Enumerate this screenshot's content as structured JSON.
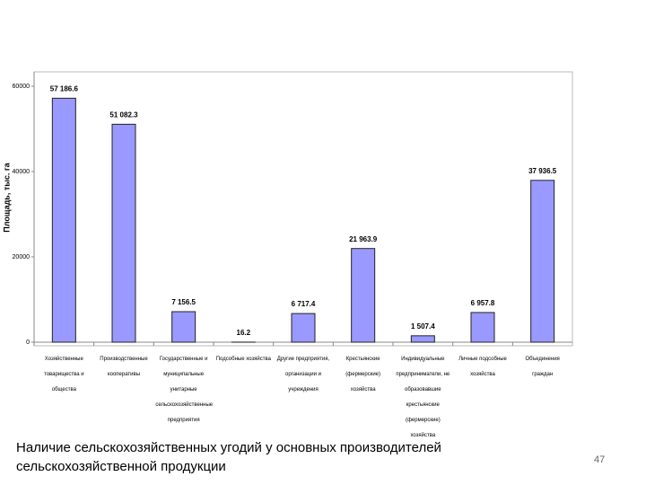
{
  "chart_data": {
    "type": "bar",
    "title": "Наличие сельскохозяйственных угодий у основных производителей сельскохозяйственной продукции",
    "y_label": "Площадь, тыс. га",
    "categories": [
      "Хозяйственные товарищества и общества",
      "Производственные кооперативы",
      "Государственные и муниципальные унитарные сельскохозяйственные предприятия",
      "Подсобные хозяйства",
      "Другие предприятия, организации и учреждения",
      "Крестьянские (фермерские) хозяйства",
      "Индивидуальные предприниматели, не образовавшие крестьянские (фермерские) хозяйства",
      "Личные подсобные хозяйства",
      "Объединения граждан"
    ],
    "values": [
      57186.6,
      51082.3,
      7156.5,
      16.2,
      6717.4,
      21963.9,
      1507.4,
      6957.8,
      37936.5
    ],
    "value_labels": [
      "57 186.6",
      "51 082.3",
      "7 156.5",
      "16.2",
      "6 717.4",
      "21 963.9",
      "1 507.4",
      "6 957.8",
      "37 936.5"
    ],
    "color": "#9999ff",
    "ylim": [
      0,
      60000
    ],
    "yticks": [
      0,
      20000,
      40000,
      60000
    ]
  },
  "page_number": "47"
}
